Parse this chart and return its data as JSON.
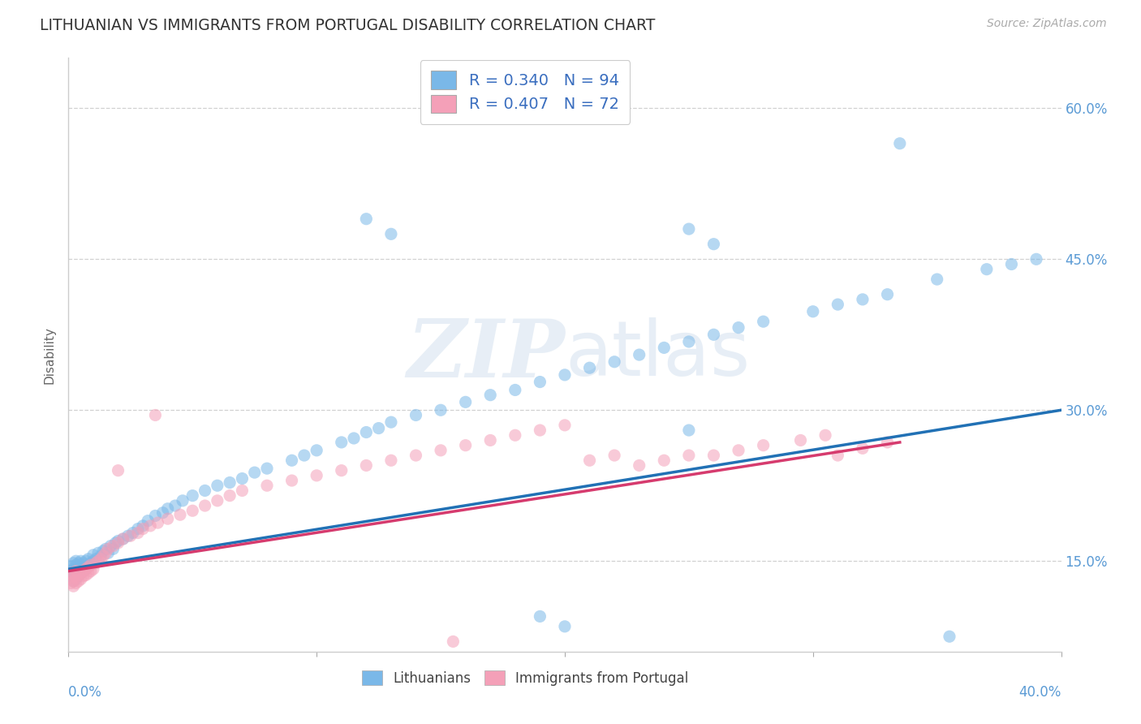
{
  "title": "LITHUANIAN VS IMMIGRANTS FROM PORTUGAL DISABILITY CORRELATION CHART",
  "source": "Source: ZipAtlas.com",
  "ylabel": "Disability",
  "watermark": "ZIPatlas",
  "legend_r1": "R = 0.340",
  "legend_n1": "N = 94",
  "legend_r2": "R = 0.407",
  "legend_n2": "N = 72",
  "blue_color": "#7ab8e8",
  "pink_color": "#f4a0b8",
  "line_blue": "#2171b5",
  "line_pink": "#d63b6e",
  "text_color": "#3a6ebf",
  "xlim": [
    0.0,
    0.4
  ],
  "ylim": [
    0.06,
    0.65
  ],
  "yticks": [
    0.15,
    0.3,
    0.45,
    0.6
  ],
  "ytick_labels": [
    "15.0%",
    "30.0%",
    "45.0%",
    "60.0%"
  ],
  "grid_color": "#cccccc",
  "background_color": "#ffffff",
  "blue_x": [
    0.001,
    0.001,
    0.001,
    0.002,
    0.002,
    0.002,
    0.002,
    0.003,
    0.003,
    0.003,
    0.003,
    0.004,
    0.004,
    0.004,
    0.005,
    0.005,
    0.005,
    0.006,
    0.006,
    0.007,
    0.007,
    0.008,
    0.008,
    0.009,
    0.01,
    0.01,
    0.011,
    0.012,
    0.013,
    0.014,
    0.015,
    0.016,
    0.017,
    0.018,
    0.019,
    0.02,
    0.022,
    0.024,
    0.026,
    0.028,
    0.03,
    0.032,
    0.035,
    0.038,
    0.04,
    0.043,
    0.046,
    0.05,
    0.055,
    0.06,
    0.065,
    0.07,
    0.075,
    0.08,
    0.09,
    0.095,
    0.1,
    0.11,
    0.115,
    0.12,
    0.125,
    0.13,
    0.14,
    0.15,
    0.16,
    0.17,
    0.18,
    0.19,
    0.2,
    0.21,
    0.22,
    0.23,
    0.24,
    0.25,
    0.26,
    0.27,
    0.28,
    0.3,
    0.31,
    0.32,
    0.33,
    0.35,
    0.37,
    0.38,
    0.39,
    0.12,
    0.13,
    0.25,
    0.26,
    0.335,
    0.25,
    0.19,
    0.2,
    0.355
  ],
  "blue_y": [
    0.135,
    0.14,
    0.145,
    0.13,
    0.138,
    0.142,
    0.148,
    0.132,
    0.14,
    0.146,
    0.15,
    0.135,
    0.142,
    0.148,
    0.138,
    0.144,
    0.15,
    0.14,
    0.148,
    0.142,
    0.15,
    0.145,
    0.152,
    0.148,
    0.15,
    0.156,
    0.152,
    0.158,
    0.155,
    0.16,
    0.162,
    0.158,
    0.165,
    0.162,
    0.168,
    0.17,
    0.172,
    0.175,
    0.178,
    0.182,
    0.185,
    0.19,
    0.195,
    0.198,
    0.202,
    0.205,
    0.21,
    0.215,
    0.22,
    0.225,
    0.228,
    0.232,
    0.238,
    0.242,
    0.25,
    0.255,
    0.26,
    0.268,
    0.272,
    0.278,
    0.282,
    0.288,
    0.295,
    0.3,
    0.308,
    0.315,
    0.32,
    0.328,
    0.335,
    0.342,
    0.348,
    0.355,
    0.362,
    0.368,
    0.375,
    0.382,
    0.388,
    0.398,
    0.405,
    0.41,
    0.415,
    0.43,
    0.44,
    0.445,
    0.45,
    0.49,
    0.475,
    0.48,
    0.465,
    0.565,
    0.28,
    0.095,
    0.085,
    0.075
  ],
  "pink_x": [
    0.001,
    0.001,
    0.001,
    0.002,
    0.002,
    0.002,
    0.003,
    0.003,
    0.003,
    0.004,
    0.004,
    0.005,
    0.005,
    0.006,
    0.006,
    0.007,
    0.007,
    0.008,
    0.008,
    0.009,
    0.009,
    0.01,
    0.011,
    0.012,
    0.013,
    0.014,
    0.015,
    0.016,
    0.018,
    0.02,
    0.022,
    0.025,
    0.028,
    0.03,
    0.033,
    0.036,
    0.04,
    0.045,
    0.05,
    0.055,
    0.06,
    0.065,
    0.07,
    0.08,
    0.09,
    0.1,
    0.11,
    0.12,
    0.13,
    0.14,
    0.15,
    0.16,
    0.17,
    0.18,
    0.19,
    0.2,
    0.21,
    0.22,
    0.23,
    0.24,
    0.25,
    0.26,
    0.27,
    0.28,
    0.295,
    0.305,
    0.31,
    0.32,
    0.33,
    0.02,
    0.035,
    0.155
  ],
  "pink_y": [
    0.128,
    0.133,
    0.138,
    0.125,
    0.13,
    0.135,
    0.128,
    0.134,
    0.14,
    0.13,
    0.136,
    0.132,
    0.138,
    0.135,
    0.14,
    0.136,
    0.142,
    0.138,
    0.144,
    0.14,
    0.146,
    0.142,
    0.148,
    0.15,
    0.152,
    0.155,
    0.158,
    0.162,
    0.165,
    0.168,
    0.172,
    0.175,
    0.178,
    0.182,
    0.185,
    0.188,
    0.192,
    0.196,
    0.2,
    0.205,
    0.21,
    0.215,
    0.22,
    0.225,
    0.23,
    0.235,
    0.24,
    0.245,
    0.25,
    0.255,
    0.26,
    0.265,
    0.27,
    0.275,
    0.28,
    0.285,
    0.25,
    0.255,
    0.245,
    0.25,
    0.255,
    0.255,
    0.26,
    0.265,
    0.27,
    0.275,
    0.255,
    0.262,
    0.268,
    0.24,
    0.295,
    0.07
  ],
  "blue_line_x": [
    0.0,
    0.4
  ],
  "blue_line_y": [
    0.142,
    0.3
  ],
  "pink_line_x": [
    0.0,
    0.335
  ],
  "pink_line_y": [
    0.14,
    0.268
  ]
}
